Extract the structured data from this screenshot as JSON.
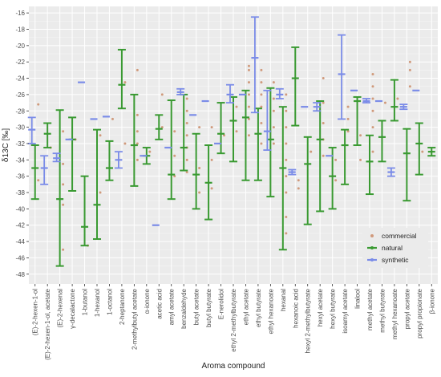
{
  "chart_data": {
    "type": "scatter",
    "xlabel": "Aroma compound",
    "ylabel": "δ13C [‰]",
    "ylim": [
      -49.2,
      -15.2
    ],
    "yticks": [
      -16,
      -18,
      -20,
      -22,
      -24,
      -26,
      -28,
      -30,
      -32,
      -34,
      -36,
      -38,
      -40,
      -42,
      -44,
      -46,
      -48
    ],
    "grid": true,
    "legend_position": "right",
    "colors": {
      "commercial": "#D09A7C",
      "natural": "#3A9A32",
      "synthetic": "#7B8CE8",
      "panel": "#EBEBEB",
      "grid": "#FFFFFF"
    },
    "categories": [
      "(E)-2-hexen-1-ol",
      "(E)-2-hexen-1-ol, acetate",
      "(E)-2-hexenal",
      "γ-decalactone",
      "1-butanol",
      "1-hexanol",
      "1-octanol",
      "2-heptanone",
      "2-methylbutyl acetate",
      "α-ionone",
      "acetic acid",
      "amyl acetate",
      "benzaldehyde",
      "butyl acetate",
      "butyl butyrate",
      "E-nerolidol",
      "ethyl 2-methylbutyrate",
      "ethyl acetate",
      "ethyl butyrate",
      "ethyl hexanoate",
      "hexanal",
      "hexanoic acid",
      "hexyl 2-methylbutyrate",
      "hexyl acetate",
      "hexyl butyrate",
      "isoamyl acetate",
      "linalool",
      "methyl acetate",
      "methyl butyrate",
      "methyl hexanoate",
      "propyl acetate",
      "propyl propionate",
      "β-ionone"
    ],
    "series": [
      {
        "name": "commercial",
        "points": [
          {
            "x": "(E)-2-hexen-1-ol",
            "y": [
              -27.2,
              -36.5
            ]
          },
          {
            "x": "(E)-2-hexen-1-ol, acetate",
            "y": [
              -32.5
            ]
          },
          {
            "x": "(E)-2-hexenal",
            "y": [
              -30.5,
              -34.5,
              -37.0,
              -39.5,
              -45.0
            ]
          },
          {
            "x": "γ-decalactone",
            "y": [
              -31.5
            ]
          },
          {
            "x": "1-butanol",
            "y": [
              -44.5
            ]
          },
          {
            "x": "1-hexanol",
            "y": [
              -31.0,
              -38.0
            ]
          },
          {
            "x": "1-octanol",
            "y": [
              -29.0
            ]
          },
          {
            "x": "2-heptanone",
            "y": [
              -24.5,
              -32.0
            ]
          },
          {
            "x": "2-methylbutyl acetate",
            "y": [
              -23.0,
              -28.5,
              -30.5,
              -32.0,
              -34.0
            ]
          },
          {
            "x": "α-ionone",
            "y": [
              -33.0
            ]
          },
          {
            "x": "acetic acid",
            "y": [
              -26.0,
              -30.0
            ]
          },
          {
            "x": "amyl acetate",
            "y": [
              -30.5,
              -33.5,
              -36.0
            ]
          },
          {
            "x": "benzaldehyde",
            "y": [
              -26.5,
              -28.0,
              -29.5,
              -31.0,
              -32.5,
              -34.0,
              -35.5
            ]
          },
          {
            "x": "butyl acetate",
            "y": [
              -30.0,
              -35.0,
              -38.0
            ]
          },
          {
            "x": "butyl butyrate",
            "y": [
              -30.0,
              -34.0,
              -37.5
            ]
          },
          {
            "x": "E-nerolidol",
            "y": [
              -31.0
            ]
          },
          {
            "x": "ethyl 2-methylbutyrate",
            "y": [
              -27.5,
              -30.5
            ]
          },
          {
            "x": "ethyl acetate",
            "y": [
              -22.5,
              -23.0,
              -24.5,
              -26.0,
              -27.5,
              -29.0,
              -31.0
            ]
          },
          {
            "x": "ethyl butyrate",
            "y": [
              -23.0,
              -24.5,
              -26.0,
              -27.5,
              -29.5,
              -32.0
            ]
          },
          {
            "x": "ethyl hexanoate",
            "y": [
              -24.5,
              -26.5,
              -28.0,
              -30.0,
              -32.0
            ]
          },
          {
            "x": "hexanal",
            "y": [
              -26.0,
              -28.0,
              -30.0,
              -32.0,
              -34.0,
              -36.0,
              -38.0,
              -41.0,
              -43.0
            ]
          },
          {
            "x": "hexanoic acid",
            "y": [
              -36.5,
              -37.5
            ]
          },
          {
            "x": "hexyl 2-methylbutyrate",
            "y": [
              -33.0
            ]
          },
          {
            "x": "hexyl acetate",
            "y": [
              -24.0,
              -27.0,
              -29.5,
              -31.5,
              -33.5
            ]
          },
          {
            "x": "hexyl butyrate",
            "y": [
              -34.0,
              -36.5
            ]
          },
          {
            "x": "isoamyl acetate",
            "y": [
              -27.5,
              -29.0,
              -30.5
            ]
          },
          {
            "x": "linalool",
            "y": [
              -31.0,
              -34.0
            ]
          },
          {
            "x": "methyl acetate",
            "y": [
              -23.5,
              -25.0,
              -26.5,
              -28.0,
              -30.0,
              -33.0
            ]
          },
          {
            "x": "methyl butyrate",
            "y": [
              -27.0
            ]
          },
          {
            "x": "methyl hexanoate",
            "y": [
              -26.5
            ]
          },
          {
            "x": "propyl acetate",
            "y": [
              -22.0,
              -23.0,
              -25.0
            ]
          },
          {
            "x": "propyl propionate",
            "y": [
              -33.0
            ]
          }
        ]
      },
      {
        "name": "natural",
        "points": [
          {
            "x": "(E)-2-hexen-1-ol",
            "y": [
              -35.0
            ],
            "range": [
              -38.8,
              -32.2
            ]
          },
          {
            "x": "(E)-2-hexen-1-ol, acetate",
            "y": [
              -30.8
            ],
            "range": [
              -32.5,
              -29.5
            ]
          },
          {
            "x": "(E)-2-hexenal",
            "y": [
              -38.8
            ],
            "range": [
              -47.0,
              -27.9
            ]
          },
          {
            "x": "γ-decalactone",
            "y": [
              -31.5
            ],
            "range": [
              -37.8,
              -28.8
            ]
          },
          {
            "x": "1-butanol",
            "y": [
              -42.2
            ],
            "range": [
              -44.5,
              -36.0
            ]
          },
          {
            "x": "1-hexanol",
            "y": [
              -39.5
            ],
            "range": [
              -43.7,
              -30.3
            ]
          },
          {
            "x": "1-octanol",
            "y": [
              -35.0
            ],
            "range": [
              -36.5,
              -31.7
            ]
          },
          {
            "x": "2-heptanone",
            "y": [
              -24.8
            ],
            "range": [
              -27.7,
              -20.5
            ]
          },
          {
            "x": "2-methylbutyl acetate",
            "y": [
              -32.2
            ],
            "range": [
              -37.2,
              -26.0
            ]
          },
          {
            "x": "α-ionone",
            "y": [
              -33.5
            ],
            "range": [
              -34.5,
              -32.5
            ]
          },
          {
            "x": "acetic acid",
            "y": [
              -30.2
            ],
            "range": [
              -31.5,
              -28.5
            ]
          },
          {
            "x": "amyl acetate",
            "y": [
              -35.8
            ],
            "range": [
              -38.8,
              -26.7
            ]
          },
          {
            "x": "benzaldehyde",
            "y": [
              -32.5
            ],
            "range": [
              -35.3,
              -26.0
            ]
          },
          {
            "x": "butyl acetate",
            "y": [
              -35.8
            ],
            "range": [
              -40.0,
              -30.8
            ]
          },
          {
            "x": "butyl butyrate",
            "y": [
              -36.8
            ],
            "range": [
              -41.3,
              -32.2
            ]
          },
          {
            "x": "E-nerolidol",
            "y": [
              -30.8
            ],
            "range": [
              -33.2,
              -27.0
            ]
          },
          {
            "x": "ethyl 2-methylbutyrate",
            "y": [
              -29.2
            ],
            "range": [
              -34.2,
              -26.3
            ]
          },
          {
            "x": "ethyl acetate",
            "y": [
              -28.8
            ],
            "range": [
              -36.5,
              -25.5
            ]
          },
          {
            "x": "ethyl butyrate",
            "y": [
              -30.8
            ],
            "range": [
              -36.5,
              -27.7
            ]
          },
          {
            "x": "ethyl hexanoate",
            "y": [
              -31.5
            ],
            "range": [
              -38.5,
              -25.2
            ]
          },
          {
            "x": "hexanal",
            "y": [
              -35.0
            ],
            "range": [
              -45.0,
              -27.5
            ]
          },
          {
            "x": "hexanoic acid",
            "y": [
              -24.0
            ],
            "range": [
              -29.8,
              -20.2
            ]
          },
          {
            "x": "hexyl 2-methylbutyrate",
            "y": [
              -34.5
            ],
            "range": [
              -41.9,
              -31.2
            ]
          },
          {
            "x": "hexyl acetate",
            "y": [
              -31.5
            ],
            "range": [
              -40.3,
              -26.8
            ]
          },
          {
            "x": "hexyl butyrate",
            "y": [
              -36.0
            ],
            "range": [
              -40.0,
              -32.5
            ]
          },
          {
            "x": "isoamyl acetate",
            "y": [
              -32.2
            ],
            "range": [
              -37.0,
              -30.3
            ]
          },
          {
            "x": "linalool",
            "y": [
              -26.8
            ],
            "range": [
              -32.2,
              -26.3
            ]
          },
          {
            "x": "methyl acetate",
            "y": [
              -34.2
            ],
            "range": [
              -38.2,
              -31.0
            ]
          },
          {
            "x": "methyl butyrate",
            "y": [
              -31.2
            ],
            "range": [
              -34.2,
              -29.2
            ]
          },
          {
            "x": "methyl hexanoate",
            "y": [
              -27.5
            ],
            "range": [
              -29.2,
              -24.2
            ]
          },
          {
            "x": "propyl acetate",
            "y": [
              -33.2
            ],
            "range": [
              -39.0,
              -30.2
            ]
          },
          {
            "x": "propyl propionate",
            "y": [
              -32.0
            ],
            "range": [
              -35.8,
              -29.5
            ]
          },
          {
            "x": "β-ionone",
            "y": [
              -33.0
            ],
            "range": [
              -33.5,
              -32.5
            ]
          }
        ]
      },
      {
        "name": "synthetic",
        "points": [
          {
            "x": "(E)-2-hexen-1-ol",
            "y": [
              -30.3
            ],
            "range": [
              -32.0,
              -28.8
            ]
          },
          {
            "x": "(E)-2-hexen-1-ol, acetate",
            "y": [
              -35.0
            ],
            "range": [
              -37.0,
              -33.5
            ]
          },
          {
            "x": "(E)-2-hexenal",
            "y": [
              -33.8
            ],
            "range": [
              -34.2,
              -33.2
            ]
          },
          {
            "x": "γ-decalactone",
            "y": [
              -31.5
            ]
          },
          {
            "x": "1-butanol",
            "y": [
              -24.5
            ]
          },
          {
            "x": "1-hexanol",
            "y": [
              -29.0
            ]
          },
          {
            "x": "1-octanol",
            "y": [
              -28.7
            ]
          },
          {
            "x": "2-heptanone",
            "y": [
              -34.0
            ],
            "range": [
              -35.0,
              -33.0
            ]
          },
          {
            "x": "α-ionone",
            "y": [
              -33.5
            ]
          },
          {
            "x": "acetic acid",
            "y": [
              -42.0
            ]
          },
          {
            "x": "amyl acetate",
            "y": [
              -32.5
            ]
          },
          {
            "x": "benzaldehyde",
            "y": [
              -25.7
            ],
            "range": [
              -26.0,
              -25.3
            ]
          },
          {
            "x": "butyl acetate",
            "y": [
              -28.5
            ]
          },
          {
            "x": "butyl butyrate",
            "y": [
              -26.8
            ]
          },
          {
            "x": "E-nerolidol",
            "y": [
              -32.0
            ]
          },
          {
            "x": "ethyl 2-methylbutyrate",
            "y": [
              -26.0
            ],
            "range": [
              -27.0,
              -24.8
            ]
          },
          {
            "x": "ethyl acetate",
            "y": [
              -26.0
            ]
          },
          {
            "x": "ethyl butyrate",
            "y": [
              -21.5
            ],
            "range": [
              -28.2,
              -16.5
            ]
          },
          {
            "x": "ethyl hexanoate",
            "y": [
              -30.5
            ],
            "range": [
              -32.8,
              -25.5
            ]
          },
          {
            "x": "hexanal",
            "y": [
              -26.0
            ],
            "range": [
              -26.5,
              -25.3
            ]
          },
          {
            "x": "hexanoic acid",
            "y": [
              -35.5
            ],
            "range": [
              -35.8,
              -35.2
            ]
          },
          {
            "x": "hexyl 2-methylbutyrate",
            "y": [
              -27.5
            ]
          },
          {
            "x": "hexyl acetate",
            "y": [
              -27.5
            ],
            "range": [
              -28.0,
              -27.0
            ]
          },
          {
            "x": "hexyl butyrate",
            "y": [
              -33.5
            ]
          },
          {
            "x": "isoamyl acetate",
            "y": [
              -23.5
            ],
            "range": [
              -29.0,
              -18.7
            ]
          },
          {
            "x": "linalool",
            "y": [
              -25.5
            ]
          },
          {
            "x": "methyl acetate",
            "y": [
              -26.8
            ],
            "range": [
              -27.0,
              -26.5
            ]
          },
          {
            "x": "methyl butyrate",
            "y": [
              -26.8
            ]
          },
          {
            "x": "methyl hexanoate",
            "y": [
              -35.5
            ],
            "range": [
              -36.0,
              -35.0
            ]
          },
          {
            "x": "propyl acetate",
            "y": [
              -27.5
            ],
            "range": [
              -27.8,
              -27.2
            ]
          },
          {
            "x": "propyl propionate",
            "y": [
              -25.5
            ]
          }
        ]
      }
    ]
  }
}
